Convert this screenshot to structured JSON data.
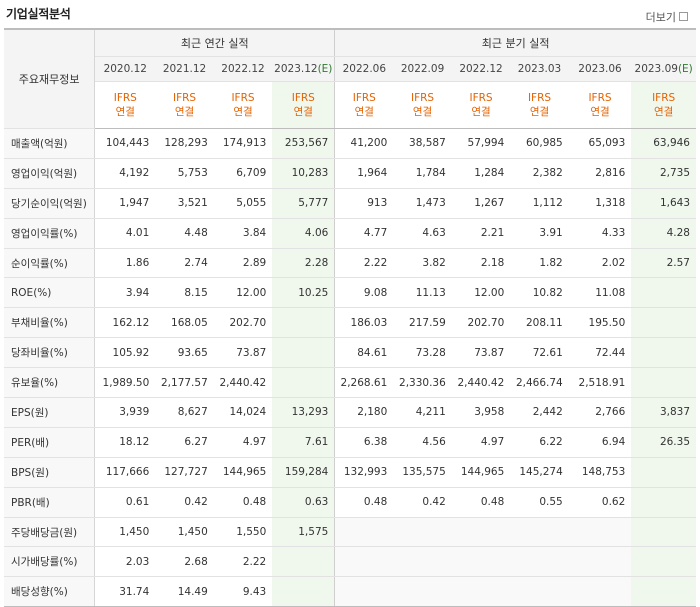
{
  "header": {
    "title": "기업실적분석",
    "more": "더보기"
  },
  "table": {
    "key_header": "주요재무정보",
    "annual_group": "최근 연간 실적",
    "quarter_group": "최근 분기 실적",
    "annual_dates": [
      "2020.12",
      "2021.12",
      "2022.12",
      "2023.12"
    ],
    "quarter_dates": [
      "2022.06",
      "2022.09",
      "2022.12",
      "2023.03",
      "2023.06",
      "2023.09"
    ],
    "estimate_mark": "(E)",
    "ifrs_line1": "IFRS",
    "ifrs_line2": "연결",
    "rows": [
      {
        "label": "매출액(억원)",
        "values": [
          "104,443",
          "128,293",
          "174,913",
          "253,567",
          "41,200",
          "38,587",
          "57,994",
          "60,985",
          "65,093",
          "63,946"
        ]
      },
      {
        "label": "영업이익(억원)",
        "values": [
          "4,192",
          "5,753",
          "6,709",
          "10,283",
          "1,964",
          "1,784",
          "1,284",
          "2,382",
          "2,816",
          "2,735"
        ]
      },
      {
        "label": "당기순이익(억원)",
        "values": [
          "1,947",
          "3,521",
          "5,055",
          "5,777",
          "913",
          "1,473",
          "1,267",
          "1,112",
          "1,318",
          "1,643"
        ]
      },
      {
        "label": "영업이익률(%)",
        "values": [
          "4.01",
          "4.48",
          "3.84",
          "4.06",
          "4.77",
          "4.63",
          "2.21",
          "3.91",
          "4.33",
          "4.28"
        ]
      },
      {
        "label": "순이익률(%)",
        "values": [
          "1.86",
          "2.74",
          "2.89",
          "2.28",
          "2.22",
          "3.82",
          "2.18",
          "1.82",
          "2.02",
          "2.57"
        ]
      },
      {
        "label": "ROE(%)",
        "values": [
          "3.94",
          "8.15",
          "12.00",
          "10.25",
          "9.08",
          "11.13",
          "12.00",
          "10.82",
          "11.08",
          ""
        ]
      },
      {
        "label": "부채비율(%)",
        "values": [
          "162.12",
          "168.05",
          "202.70",
          "",
          "186.03",
          "217.59",
          "202.70",
          "208.11",
          "195.50",
          ""
        ]
      },
      {
        "label": "당좌비율(%)",
        "values": [
          "105.92",
          "93.65",
          "73.87",
          "",
          "84.61",
          "73.28",
          "73.87",
          "72.61",
          "72.44",
          ""
        ]
      },
      {
        "label": "유보율(%)",
        "values": [
          "1,989.50",
          "2,177.57",
          "2,440.42",
          "",
          "2,268.61",
          "2,330.36",
          "2,440.42",
          "2,466.74",
          "2,518.91",
          ""
        ]
      },
      {
        "label": "EPS(원)",
        "values": [
          "3,939",
          "8,627",
          "14,024",
          "13,293",
          "2,180",
          "4,211",
          "3,958",
          "2,442",
          "2,766",
          "3,837"
        ]
      },
      {
        "label": "PER(배)",
        "values": [
          "18.12",
          "6.27",
          "4.97",
          "7.61",
          "6.38",
          "4.56",
          "4.97",
          "6.22",
          "6.94",
          "26.35"
        ]
      },
      {
        "label": "BPS(원)",
        "values": [
          "117,666",
          "127,727",
          "144,965",
          "159,284",
          "132,993",
          "135,575",
          "144,965",
          "145,274",
          "148,753",
          ""
        ]
      },
      {
        "label": "PBR(배)",
        "values": [
          "0.61",
          "0.42",
          "0.48",
          "0.63",
          "0.48",
          "0.42",
          "0.48",
          "0.55",
          "0.62",
          ""
        ]
      },
      {
        "label": "주당배당금(원)",
        "values": [
          "1,450",
          "1,450",
          "1,550",
          "1,575",
          "",
          "",
          "",
          "",
          "",
          ""
        ]
      },
      {
        "label": "시가배당률(%)",
        "values": [
          "2.03",
          "2.68",
          "2.22",
          "",
          "",
          "",
          "",
          "",
          "",
          ""
        ]
      },
      {
        "label": "배당성향(%)",
        "values": [
          "31.74",
          "14.49",
          "9.43",
          "",
          "",
          "",
          "",
          "",
          "",
          ""
        ]
      }
    ]
  }
}
